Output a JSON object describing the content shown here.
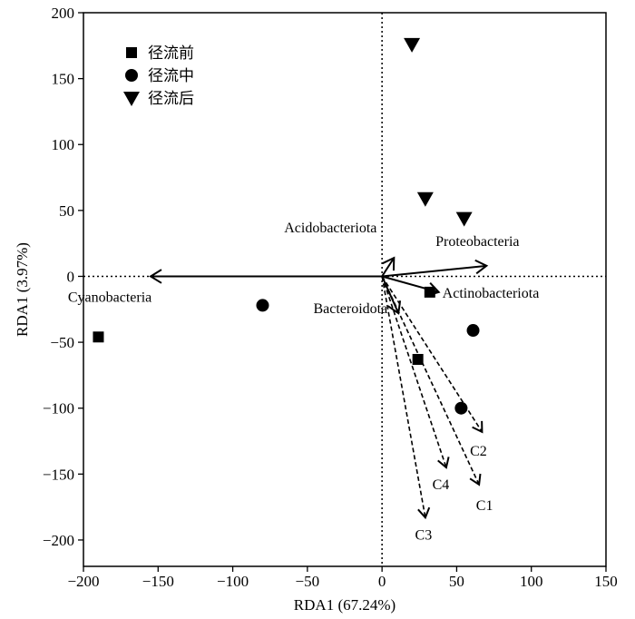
{
  "chart_data": {
    "type": "scatter",
    "xlabel": "RDA1 (67.24%)",
    "ylabel": "RDA1 (3.97%)",
    "xlim": [
      -200,
      150
    ],
    "ylim": [
      -220,
      200
    ],
    "xticks": [
      -200,
      -150,
      -100,
      -50,
      0,
      50,
      100,
      150
    ],
    "yticks": [
      -200,
      -150,
      -100,
      -50,
      0,
      50,
      100,
      150,
      200
    ],
    "grid": false,
    "zero_lines": "dotted",
    "legend_position": "top-left",
    "series": [
      {
        "name": "径流前",
        "marker": "square",
        "points": [
          [
            -190,
            -46
          ],
          [
            24,
            -63
          ],
          [
            32,
            -12
          ]
        ]
      },
      {
        "name": "径流中",
        "marker": "circle",
        "points": [
          [
            -80,
            -22
          ],
          [
            61,
            -41
          ],
          [
            53,
            -100
          ]
        ]
      },
      {
        "name": "径流后",
        "marker": "triangle-down",
        "points": [
          [
            20,
            176
          ],
          [
            29,
            59
          ],
          [
            55,
            44
          ]
        ]
      }
    ],
    "species_arrows": [
      {
        "label": "Cyanobacteria",
        "x": -155,
        "y": 0
      },
      {
        "label": "Acidobacteriota",
        "x": 8,
        "y": 14
      },
      {
        "label": "Proteobacteria",
        "x": 70,
        "y": 8
      },
      {
        "label": "Actinobacteriota",
        "x": 38,
        "y": -12
      },
      {
        "label": "Bacteroidota",
        "x": 11,
        "y": -28
      }
    ],
    "env_arrows": [
      {
        "label": "C1",
        "x": 65,
        "y": -158
      },
      {
        "label": "C2",
        "x": 67,
        "y": -118
      },
      {
        "label": "C3",
        "x": 29,
        "y": -183
      },
      {
        "label": "C4",
        "x": 43,
        "y": -145
      }
    ]
  }
}
